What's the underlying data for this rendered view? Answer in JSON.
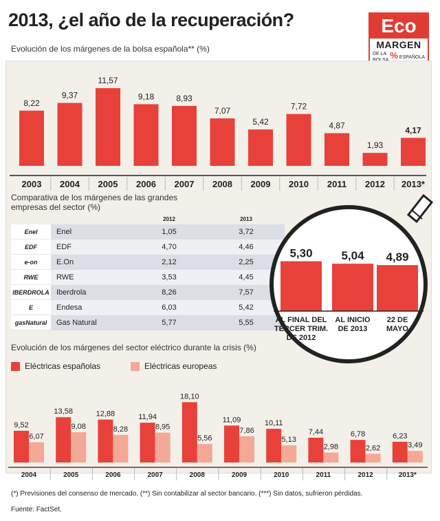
{
  "title": "2013, ¿el año de la recuperación?",
  "logo": {
    "top": "Eco",
    "main": "MARGEN",
    "sub_left": "DE LA\nBOLSA",
    "pct": "%",
    "sub_right": "ESPAÑOLA"
  },
  "colors": {
    "red": "#e8413a",
    "pink": "#f4a896",
    "panel": "#f3efe9"
  },
  "chart_data": [
    {
      "type": "bar",
      "title": "Evolución de los márgenes de la bolsa española** (%)",
      "categories": [
        "2003",
        "2004",
        "2005",
        "2006",
        "2007",
        "2008",
        "2009",
        "2010",
        "2011",
        "2012",
        "2013*"
      ],
      "values": [
        8.22,
        9.37,
        11.57,
        9.18,
        8.93,
        7.07,
        5.42,
        7.72,
        4.87,
        1.93,
        4.17
      ],
      "labels": [
        "8,22",
        "9,37",
        "11,57",
        "9,18",
        "8,93",
        "7,07",
        "5,42",
        "7,72",
        "4,87",
        "1,93",
        "4,17"
      ],
      "ylim": [
        0,
        12.5
      ]
    },
    {
      "type": "table",
      "title": "Comparativa de los márgenes de las grandes empresas del sector (%)",
      "columns": [
        "2012",
        "2013"
      ],
      "rows": [
        {
          "logo": "Enel",
          "name": "Enel",
          "v2012": "1,05",
          "v2013": "3,72"
        },
        {
          "logo": "EDF",
          "name": "EDF",
          "v2012": "4,70",
          "v2013": "4,46"
        },
        {
          "logo": "e-on",
          "name": "E.On",
          "v2012": "2,12",
          "v2013": "2,25"
        },
        {
          "logo": "RWE",
          "name": "RWE",
          "v2012": "3,53",
          "v2013": "4,45"
        },
        {
          "logo": "IBERDROLA",
          "name": "Iberdrola",
          "v2012": "8,26",
          "v2013": "7,57"
        },
        {
          "logo": "E",
          "name": "Endesa",
          "v2012": "6,03",
          "v2013": "5,42"
        },
        {
          "logo": "gasNatural",
          "name": "Gas Natural",
          "v2012": "5,77",
          "v2013": "5,55"
        }
      ]
    },
    {
      "type": "bar",
      "categories": [
        "AL FINAL DEL TERCER TRIM. DE 2012",
        "AL INICIO DE 2013",
        "22 DE MAYO"
      ],
      "category_lines": [
        [
          "AL FINAL DEL",
          "TERCER TRIM.",
          "DE 2012"
        ],
        [
          "AL INICIO",
          "DE 2013"
        ],
        [
          "22 DE",
          "MAYO"
        ]
      ],
      "values": [
        5.3,
        5.04,
        4.89
      ],
      "labels": [
        "5,30",
        "5,04",
        "4,89"
      ],
      "ylim": [
        0,
        6.0
      ]
    },
    {
      "type": "bar",
      "title": "Evolución de los márgenes del sector eléctrico durante la crisis (%)",
      "categories": [
        "2004",
        "2005",
        "2006",
        "2007",
        "2008",
        "2009",
        "2010",
        "2011",
        "2012",
        "2013*"
      ],
      "series": [
        {
          "name": "Eléctricas españolas",
          "values": [
            9.52,
            13.58,
            12.88,
            11.94,
            18.1,
            11.09,
            10.11,
            7.44,
            6.78,
            6.23
          ],
          "labels": [
            "9,52",
            "13,58",
            "12,88",
            "11,94",
            "18,10",
            "11,09",
            "10,11",
            "7,44",
            "6,78",
            "6,23"
          ]
        },
        {
          "name": "Eléctricas europeas",
          "values": [
            6.07,
            9.08,
            8.28,
            8.95,
            5.56,
            7.86,
            5.13,
            2.98,
            2.62,
            3.49
          ],
          "labels": [
            "6,07",
            "9,08",
            "8,28",
            "8,95",
            "5,56",
            "7,86",
            "5,13",
            "2,98",
            "2,62",
            "3,49"
          ]
        }
      ],
      "ylim": [
        0,
        19
      ]
    }
  ],
  "footnote": "(*) Previsiones del consenso de mercado. (**) Sin contabilizar al sector bancario. (***) Sin datos, sufrieron pérdidas.",
  "source": "Fuente: FactSet."
}
